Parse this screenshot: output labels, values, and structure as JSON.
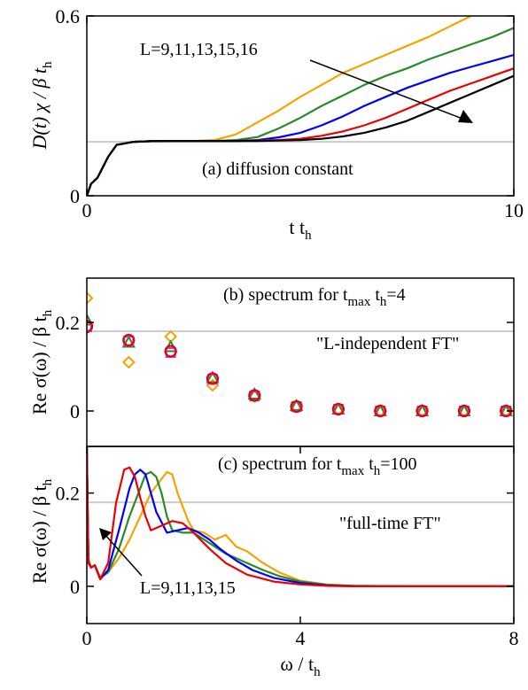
{
  "chart_data": [
    {
      "type": "line",
      "xlabel": "t t",
      "xlabel_sub": "h",
      "ylabel": "D(t) χ / β t",
      "ylabel_sub": "h",
      "xlim": [
        0,
        10
      ],
      "ylim": [
        0,
        0.6
      ],
      "xticks": [
        0,
        10
      ],
      "yticks": [
        0,
        0.6
      ],
      "yticklabels": [
        "0",
        "0.6"
      ],
      "reference_line": 0.18,
      "annotation_panel": "(a) diffusion constant",
      "annotation_L": "L=9,11,13,15,16",
      "series": [
        {
          "L": 9,
          "color": "#f5a300",
          "x": [
            0,
            0.1,
            0.25,
            0.5,
            0.7,
            0.9,
            1.1,
            1.5,
            2,
            2.5,
            3,
            3.5,
            4,
            4.5,
            5,
            5.5,
            6,
            6.5,
            7,
            7.5,
            8,
            8.5,
            9
          ],
          "y": [
            0,
            0.04,
            0.06,
            0.13,
            0.17,
            0.175,
            0.18,
            0.182,
            0.183,
            0.183,
            0.186,
            0.205,
            0.245,
            0.285,
            0.33,
            0.37,
            0.41,
            0.44,
            0.47,
            0.5,
            0.53,
            0.565,
            0.6
          ]
        },
        {
          "L": 11,
          "color": "#2a8a2a",
          "x": [
            0,
            0.1,
            0.25,
            0.5,
            0.7,
            0.9,
            1.1,
            1.5,
            2,
            2.5,
            3,
            3.5,
            4,
            4.5,
            5,
            5.5,
            6,
            6.5,
            7,
            7.5,
            8,
            8.5,
            9,
            9.5,
            10
          ],
          "y": [
            0,
            0.04,
            0.06,
            0.13,
            0.17,
            0.175,
            0.18,
            0.182,
            0.183,
            0.183,
            0.183,
            0.186,
            0.196,
            0.225,
            0.26,
            0.3,
            0.335,
            0.37,
            0.4,
            0.425,
            0.455,
            0.48,
            0.505,
            0.53,
            0.56
          ]
        },
        {
          "L": 13,
          "color": "#0000ff",
          "x": [
            0,
            0.1,
            0.25,
            0.5,
            0.7,
            0.9,
            1.1,
            1.5,
            2,
            2.5,
            3,
            3.5,
            4,
            4.5,
            5,
            5.5,
            6,
            6.5,
            7,
            7.5,
            8,
            8.5,
            9,
            9.5,
            10
          ],
          "y": [
            0,
            0.04,
            0.06,
            0.13,
            0.17,
            0.175,
            0.18,
            0.182,
            0.183,
            0.183,
            0.183,
            0.183,
            0.186,
            0.195,
            0.21,
            0.235,
            0.265,
            0.3,
            0.33,
            0.36,
            0.385,
            0.41,
            0.43,
            0.45,
            0.47
          ]
        },
        {
          "L": 15,
          "color": "#ee0000",
          "x": [
            0,
            0.1,
            0.25,
            0.5,
            0.7,
            0.9,
            1.1,
            1.5,
            2,
            2.5,
            3,
            3.5,
            4,
            4.5,
            5,
            5.5,
            6,
            6.5,
            7,
            7.5,
            8,
            8.5,
            9,
            9.5,
            10
          ],
          "y": [
            0,
            0.04,
            0.06,
            0.13,
            0.17,
            0.175,
            0.18,
            0.182,
            0.183,
            0.183,
            0.183,
            0.183,
            0.184,
            0.186,
            0.19,
            0.2,
            0.215,
            0.235,
            0.26,
            0.29,
            0.32,
            0.35,
            0.375,
            0.4,
            0.425
          ]
        },
        {
          "L": 16,
          "color": "#000000",
          "x": [
            0,
            0.1,
            0.25,
            0.5,
            0.7,
            0.9,
            1.1,
            1.5,
            2,
            2.5,
            3,
            3.5,
            4,
            4.5,
            5,
            5.5,
            6,
            6.5,
            7,
            7.5,
            8,
            8.5,
            9,
            9.5,
            10
          ],
          "y": [
            0,
            0.04,
            0.06,
            0.13,
            0.17,
            0.175,
            0.18,
            0.182,
            0.183,
            0.183,
            0.183,
            0.183,
            0.183,
            0.184,
            0.186,
            0.19,
            0.198,
            0.21,
            0.228,
            0.25,
            0.28,
            0.31,
            0.34,
            0.37,
            0.4
          ]
        }
      ]
    },
    {
      "type": "scatter",
      "ylabel": "Re σ(ω) / β t",
      "ylabel_sub": "h",
      "xlim": [
        0,
        8
      ],
      "ylim": [
        -0.08,
        0.3
      ],
      "yticks": [
        0,
        0.2
      ],
      "yticklabels": [
        "0",
        "0.2"
      ],
      "reference_line": 0.18,
      "annotation_panel": "(b) spectrum for t",
      "annotation_panel_sub": "max",
      "annotation_panel_rest": " t",
      "annotation_panel_sub2": "h",
      "annotation_panel_end": "=4",
      "annotation_note": "\"L-independent FT\"",
      "series": [
        {
          "L": 9,
          "marker": "diamond",
          "color": "#f5a300",
          "x": [
            0,
            0.785,
            1.571,
            2.356,
            3.142,
            3.927,
            4.712,
            5.498,
            6.283,
            7.069,
            7.854
          ],
          "y": [
            0.255,
            0.11,
            0.168,
            0.058,
            0.033,
            0.01,
            0.003,
            0.0,
            0.0,
            0.0,
            0.0
          ]
        },
        {
          "L": 11,
          "marker": "triangle",
          "color": "#2a8a2a",
          "x": [
            0,
            0.785,
            1.571,
            2.356,
            3.142,
            3.927,
            4.712,
            5.498,
            6.283,
            7.069,
            7.854
          ],
          "y": [
            0.205,
            0.155,
            0.145,
            0.075,
            0.038,
            0.012,
            0.004,
            0.0,
            0.0,
            0.0,
            0.0
          ]
        },
        {
          "L": 13,
          "marker": "circle",
          "color": "#0000ff",
          "x": [
            0,
            0.785,
            1.571,
            2.356,
            3.142,
            3.927,
            4.712,
            5.498,
            6.283,
            7.069,
            7.854
          ],
          "y": [
            0.19,
            0.16,
            0.135,
            0.073,
            0.035,
            0.01,
            0.004,
            0.0,
            0.0,
            0.0,
            0.0
          ]
        },
        {
          "L": 15,
          "marker": "square",
          "color": "#cc33cc",
          "x": [
            0,
            0.785,
            1.571,
            2.356,
            3.142,
            3.927,
            4.712,
            5.498,
            6.283,
            7.069,
            7.854
          ],
          "y": [
            0.19,
            0.158,
            0.132,
            0.072,
            0.034,
            0.01,
            0.004,
            0.0,
            0.0,
            0.0,
            0.0
          ]
        },
        {
          "L": 16,
          "marker": "circle",
          "color": "#ee0000",
          "x": [
            0,
            0.785,
            1.571,
            2.356,
            3.142,
            3.927,
            4.712,
            5.498,
            6.283,
            7.069,
            7.854
          ],
          "y": [
            0.192,
            0.16,
            0.135,
            0.073,
            0.035,
            0.01,
            0.004,
            0.0,
            0.0,
            0.0,
            0.0
          ]
        }
      ]
    },
    {
      "type": "line",
      "xlabel": "ω / t",
      "xlabel_sub": "h",
      "ylabel": "Re σ(ω) / β t",
      "ylabel_sub": "h",
      "xlim": [
        0,
        8
      ],
      "ylim": [
        -0.08,
        0.3
      ],
      "xticks": [
        0,
        4,
        8
      ],
      "yticks": [
        0,
        0.2
      ],
      "yticklabels": [
        "0",
        "0.2"
      ],
      "reference_line": 0.18,
      "annotation_panel": "(c) spectrum for t",
      "annotation_panel_sub": "max",
      "annotation_panel_rest": " t",
      "annotation_panel_sub2": "h",
      "annotation_panel_end": "=100",
      "annotation_note": "\"full-time FT\"",
      "annotation_L": "L=9,11,13,15",
      "series": [
        {
          "L": 9,
          "color": "#f5a300",
          "x": [
            0,
            0.03,
            0.08,
            0.15,
            0.25,
            0.4,
            0.6,
            0.8,
            1.0,
            1.2,
            1.4,
            1.5,
            1.6,
            1.7,
            1.8,
            1.9,
            2.0,
            2.2,
            2.4,
            2.6,
            2.8,
            3.0,
            3.3,
            3.6,
            4.0,
            4.5,
            5,
            6,
            7,
            8
          ],
          "y": [
            0.3,
            0.06,
            0.04,
            0.045,
            0.02,
            0.03,
            0.06,
            0.1,
            0.15,
            0.2,
            0.23,
            0.245,
            0.24,
            0.2,
            0.17,
            0.14,
            0.12,
            0.115,
            0.1,
            0.11,
            0.085,
            0.075,
            0.05,
            0.03,
            0.012,
            0.004,
            0.001,
            0.0,
            0.0,
            0.0
          ]
        },
        {
          "L": 11,
          "color": "#2a8a2a",
          "x": [
            0,
            0.03,
            0.08,
            0.15,
            0.25,
            0.4,
            0.6,
            0.8,
            1.0,
            1.1,
            1.2,
            1.3,
            1.4,
            1.5,
            1.6,
            1.8,
            2.0,
            2.2,
            2.4,
            2.6,
            2.8,
            3.0,
            3.3,
            3.6,
            4.0,
            4.5,
            5,
            6,
            7,
            8
          ],
          "y": [
            0.3,
            0.055,
            0.04,
            0.045,
            0.018,
            0.03,
            0.08,
            0.15,
            0.21,
            0.24,
            0.245,
            0.235,
            0.2,
            0.15,
            0.12,
            0.115,
            0.115,
            0.1,
            0.085,
            0.07,
            0.06,
            0.05,
            0.035,
            0.022,
            0.01,
            0.003,
            0.001,
            0.0,
            0.0,
            0.0
          ]
        },
        {
          "L": 13,
          "color": "#0000ff",
          "x": [
            0,
            0.03,
            0.08,
            0.15,
            0.25,
            0.4,
            0.6,
            0.8,
            0.9,
            1.0,
            1.1,
            1.2,
            1.3,
            1.5,
            1.7,
            1.9,
            2.1,
            2.3,
            2.5,
            2.8,
            3.1,
            3.5,
            4.0,
            4.5,
            5,
            6,
            7,
            8
          ],
          "y": [
            0.3,
            0.05,
            0.04,
            0.045,
            0.015,
            0.035,
            0.12,
            0.21,
            0.24,
            0.25,
            0.24,
            0.2,
            0.16,
            0.115,
            0.12,
            0.125,
            0.115,
            0.1,
            0.08,
            0.055,
            0.035,
            0.018,
            0.007,
            0.002,
            0.0,
            0.0,
            0.0,
            0.0
          ]
        },
        {
          "L": 15,
          "color": "#ee0000",
          "x": [
            0,
            0.03,
            0.08,
            0.15,
            0.25,
            0.4,
            0.55,
            0.7,
            0.8,
            0.9,
            1.0,
            1.1,
            1.2,
            1.4,
            1.6,
            1.8,
            2.0,
            2.3,
            2.6,
            3.0,
            3.5,
            4.0,
            4.5,
            5,
            6,
            7,
            8
          ],
          "y": [
            0.3,
            0.05,
            0.04,
            0.045,
            0.015,
            0.05,
            0.18,
            0.25,
            0.255,
            0.235,
            0.19,
            0.15,
            0.12,
            0.13,
            0.14,
            0.135,
            0.115,
            0.08,
            0.05,
            0.025,
            0.01,
            0.004,
            0.001,
            0.0,
            0.0,
            0.0,
            0.0
          ]
        }
      ]
    }
  ]
}
